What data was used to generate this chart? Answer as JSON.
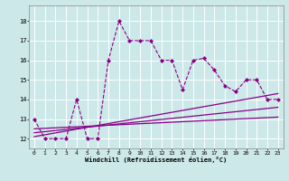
{
  "x": [
    0,
    1,
    2,
    3,
    4,
    5,
    6,
    7,
    8,
    9,
    10,
    11,
    12,
    13,
    14,
    15,
    16,
    17,
    18,
    19,
    20,
    21,
    22,
    23
  ],
  "y_main": [
    13,
    12,
    12,
    12,
    14,
    12,
    12,
    16,
    18,
    17,
    17,
    17,
    16,
    16,
    14.5,
    16,
    16.1,
    15.5,
    14.7,
    14.4,
    15,
    15,
    14,
    14
  ],
  "line1_x": [
    0,
    23
  ],
  "line1_y": [
    12.1,
    14.3
  ],
  "line2_x": [
    0,
    23
  ],
  "line2_y": [
    12.3,
    13.6
  ],
  "line3_x": [
    0,
    23
  ],
  "line3_y": [
    12.5,
    13.1
  ],
  "xlim": [
    -0.5,
    23.5
  ],
  "ylim": [
    11.5,
    18.8
  ],
  "yticks": [
    12,
    13,
    14,
    15,
    16,
    17,
    18
  ],
  "xticks": [
    0,
    1,
    2,
    3,
    4,
    5,
    6,
    7,
    8,
    9,
    10,
    11,
    12,
    13,
    14,
    15,
    16,
    17,
    18,
    19,
    20,
    21,
    22,
    23
  ],
  "xlabel": "Windchill (Refroidissement éolien,°C)",
  "bg_color": "#cce8e8",
  "line_color": "#880088",
  "grid_color": "#ffffff"
}
